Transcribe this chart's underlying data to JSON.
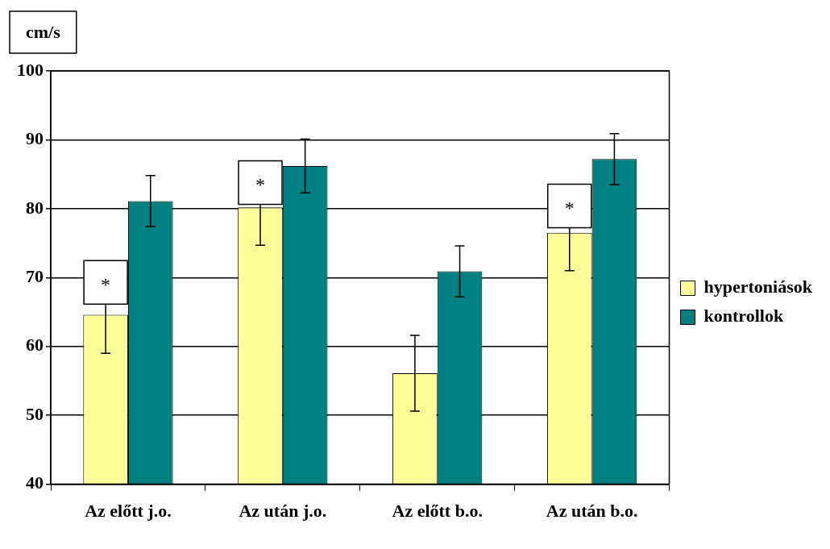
{
  "chart_data": {
    "type": "bar",
    "ylabel": "cm/s",
    "categories": [
      "Az előtt j.o.",
      "Az után j.o.",
      "Az előtt b.o.",
      "Az után b.o."
    ],
    "series": [
      {
        "name": "hypertoniások",
        "color": "#ffff99",
        "values": [
          64.6,
          80.2,
          56.1,
          76.5
        ],
        "errors": [
          5.6,
          5.5,
          5.5,
          5.5
        ]
      },
      {
        "name": "kontrollok",
        "color": "#008080",
        "values": [
          81.1,
          86.2,
          70.9,
          87.2
        ],
        "errors": [
          3.7,
          3.9,
          3.7,
          3.7
        ]
      }
    ],
    "ylim": [
      40,
      100
    ],
    "yticks": [
      40,
      50,
      60,
      70,
      80,
      90,
      100
    ],
    "grid": "y",
    "legend": "right",
    "annotations": [
      {
        "text": "*",
        "x": "Az előtt j.o.",
        "y": 69.3
      },
      {
        "text": "*",
        "x": "Az után j.o.",
        "y": 83.8
      },
      {
        "text": "*",
        "x": "Az után b.o.",
        "y": 80.4
      }
    ]
  }
}
